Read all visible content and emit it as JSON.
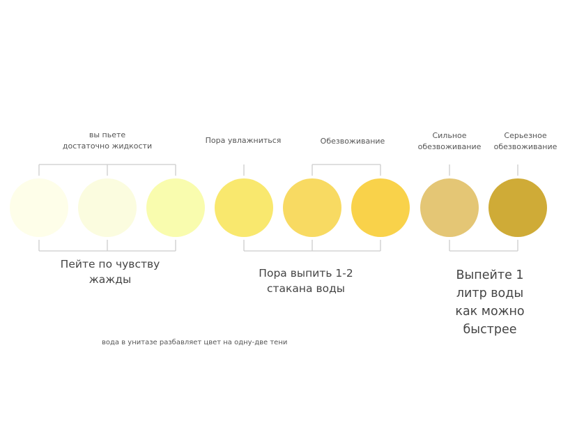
{
  "circles": [
    {
      "color": "#fefee9"
    },
    {
      "color": "#fbfcdf"
    },
    {
      "color": "#f9fcae"
    },
    {
      "color": "#f9e86e"
    },
    {
      "color": "#f8da62"
    },
    {
      "color": "#f9d24a"
    },
    {
      "color": "#e4c675"
    },
    {
      "color": "#cfab37"
    }
  ],
  "top_labels": {
    "adequate": "вы пьете\nдостаточно жидкости",
    "hydrate": "Пора увлажниться",
    "dehydration": "Обезвоживание",
    "strong": "Сильное\nобезвоживание",
    "severe": "Серьезное\nобезвоживание"
  },
  "bottom_labels": {
    "thirst": "Пейте по чувству\nжажды",
    "glasses": "Пора выпить 1-2\nстакана воды",
    "liter": "Выпейте 1 литр воды\nкак можно быстрее"
  },
  "footnote": "вода в унитазе разбавляет цвет на одну-две тени",
  "bracket_color": "#cccccc"
}
